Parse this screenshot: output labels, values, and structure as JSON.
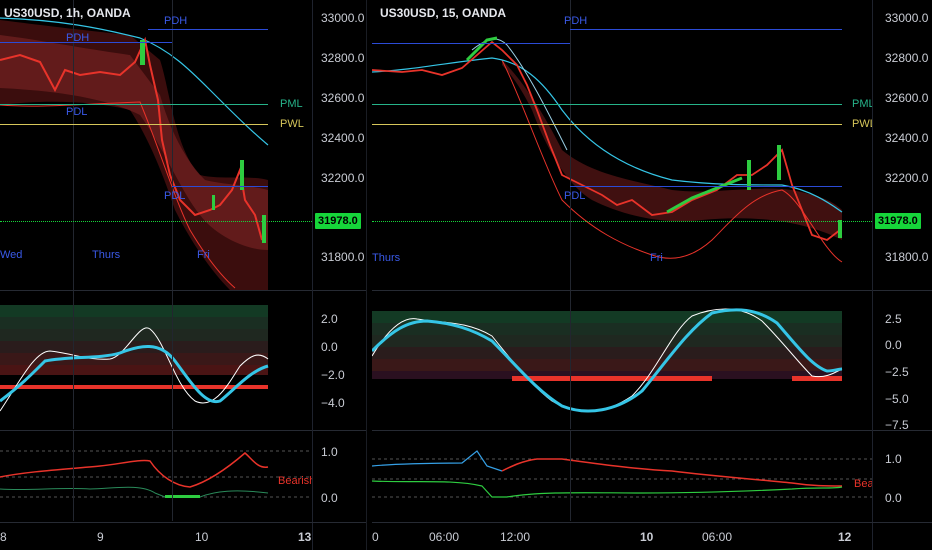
{
  "left_chart": {
    "title": "US30USD, 1h, OANDA",
    "price_ticks": [
      "33000.0",
      "32800.0",
      "32600.0",
      "32400.0",
      "32200.0",
      "32000.0",
      "31800.0"
    ],
    "current_price": "31978.0",
    "levels": {
      "pdh": "PDH",
      "pdh2": "PDH",
      "pdl": "PDL",
      "pdl2": "PDL",
      "pml": "PML",
      "pwl": "PWL"
    },
    "day_labels": [
      "Wed",
      "Thurs",
      "Fri"
    ],
    "osc_ticks": [
      "2.0",
      "0.0",
      "−2.0",
      "−4.0"
    ],
    "bot_ticks": [
      "1.0",
      "0.0"
    ],
    "bearish_label": "Bearish",
    "x_labels": [
      "8",
      "9",
      "10",
      "13"
    ]
  },
  "right_chart": {
    "title": "US30USD, 15, OANDA",
    "price_ticks": [
      "33000.0",
      "32800.0",
      "32600.0",
      "32400.0",
      "32200.0",
      "32000.0",
      "31800.0"
    ],
    "current_price": "31978.0",
    "levels": {
      "pdh": "PDH",
      "pdl": "PDL",
      "pml": "PML",
      "pwl": "PWL"
    },
    "day_labels": [
      "Thurs",
      "Fri"
    ],
    "osc_ticks": [
      "2.5",
      "0.0",
      "−2.5",
      "−5.0",
      "−7.5"
    ],
    "bot_ticks": [
      "1.0",
      "0.0"
    ],
    "bearish_label": "Bear",
    "x_labels": [
      "0",
      "06:00",
      "12:00",
      "10",
      "06:00",
      "12"
    ]
  },
  "colors": {
    "bull": "#2ecc40",
    "bear": "#e8332a",
    "cyan": "#35c5e6",
    "white": "#ffffff",
    "pdh": "#2b4bd6",
    "pml": "#26b38a",
    "pwl": "#d6c65a",
    "badge": "#16d53a"
  }
}
